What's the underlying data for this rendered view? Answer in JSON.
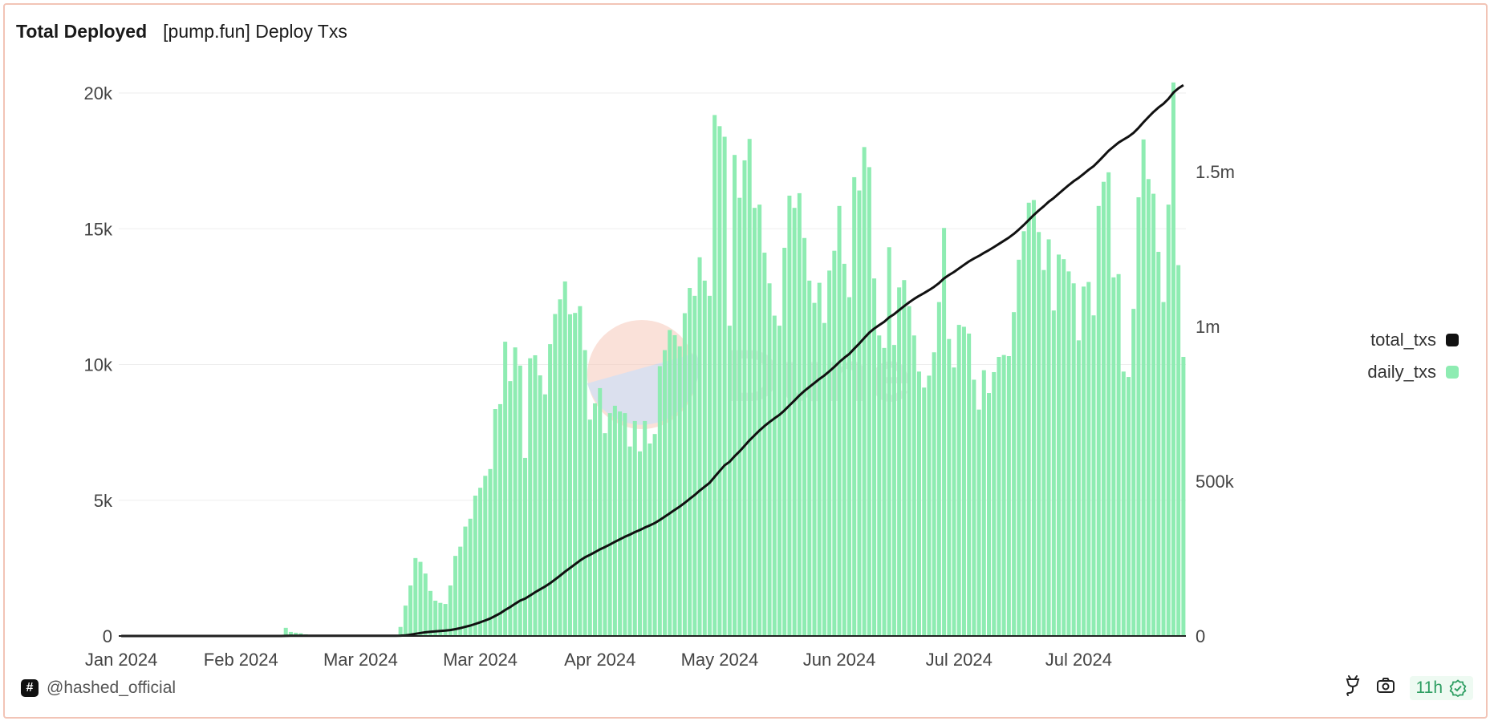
{
  "header": {
    "title": "Total Deployed",
    "subtitle": "[pump.fun] Deploy Txs"
  },
  "footer": {
    "author": "@hashed_official",
    "author_icon": "hash-icon",
    "refresh_age": "11h",
    "icons": [
      "plug-icon",
      "camera-icon",
      "verified-check-icon"
    ]
  },
  "watermark": {
    "text": "Dune"
  },
  "colors": {
    "bars": "#8eecb2",
    "line": "#111111",
    "border": "#f2c4b6",
    "badge_text": "#2e9e62"
  },
  "chart_data": {
    "type": "bar+line",
    "title": "Total Deployed",
    "legend_placement": "right",
    "grid": true,
    "x_tick_labels": [
      "Jan 2024",
      "Feb 2024",
      "Mar 2024",
      "Mar 2024",
      "Apr 2024",
      "May 2024",
      "Jun 2024",
      "Jul 2024",
      "Jul 2024"
    ],
    "x_tick_every_bars": 24,
    "y_left": {
      "ticks": [
        0,
        5000,
        10000,
        15000,
        20000
      ],
      "tick_labels": [
        "0",
        "5k",
        "10k",
        "15k",
        "20k"
      ],
      "ylim": [
        0,
        20500
      ]
    },
    "y_right": {
      "ticks": [
        0,
        500000,
        1000000,
        1500000
      ],
      "tick_labels": [
        "0",
        "500k",
        "1m",
        "1.5m"
      ],
      "ylim": [
        0,
        1798000
      ]
    },
    "series": [
      {
        "name": "total_txs",
        "type": "line",
        "axis": "right",
        "cumulative_of": "daily_txs"
      },
      {
        "name": "daily_txs",
        "type": "bar",
        "axis": "left",
        "values": [
          0,
          0,
          0,
          0,
          0,
          0,
          0,
          0,
          0,
          0,
          0,
          0,
          0,
          0,
          0,
          0,
          0,
          0,
          0,
          0,
          0,
          0,
          0,
          0,
          0,
          0,
          0,
          0,
          0,
          0,
          0,
          0,
          0,
          300,
          150,
          120,
          100,
          60,
          0,
          0,
          0,
          0,
          0,
          0,
          0,
          0,
          0,
          0,
          0,
          0,
          0,
          0,
          0,
          0,
          0,
          0,
          333,
          1120,
          1860,
          2870,
          2730,
          2300,
          1660,
          1300,
          1220,
          1180,
          1860,
          2950,
          3290,
          4030,
          4320,
          5170,
          5460,
          5900,
          6150,
          8360,
          8540,
          10840,
          9390,
          10630,
          9960,
          6560,
          10230,
          10340,
          9600,
          8900,
          10750,
          11860,
          12400,
          13060,
          11850,
          11900,
          12150,
          10530,
          7970,
          8570,
          9130,
          7470,
          8210,
          8480,
          8270,
          8210,
          6980,
          7920,
          6800,
          7920,
          7090,
          7440,
          9940,
          10530,
          11270,
          11080,
          10670,
          11890,
          12820,
          12530,
          13950,
          13090,
          12530,
          19190,
          18780,
          18390,
          11430,
          17720,
          16140,
          17520,
          18310,
          15770,
          15890,
          14120,
          12990,
          11800,
          11430,
          14300,
          16220,
          15770,
          16310,
          14660,
          13090,
          12270,
          13010,
          11530,
          13460,
          14190,
          15840,
          13710,
          12480,
          16900,
          16410,
          18010,
          17270,
          13170,
          11070,
          10610,
          14320,
          10720,
          12840,
          13110,
          12150,
          11070,
          9740,
          9150,
          9590,
          10450,
          12300,
          15030,
          10940,
          9890,
          11460,
          11390,
          11140,
          9440,
          8340,
          9790,
          8950,
          9720,
          10280,
          10350,
          10310,
          11930,
          13860,
          14910,
          15960,
          16060,
          14880,
          13480,
          14610,
          11990,
          14050,
          13880,
          13430,
          12990,
          10890,
          12870,
          13040,
          11810,
          15840,
          16730,
          17080,
          13210,
          13330,
          9740,
          9540,
          12050,
          16160,
          18290,
          16830,
          16290,
          14150,
          12300,
          15890,
          20390,
          13660,
          10280
        ]
      }
    ]
  }
}
